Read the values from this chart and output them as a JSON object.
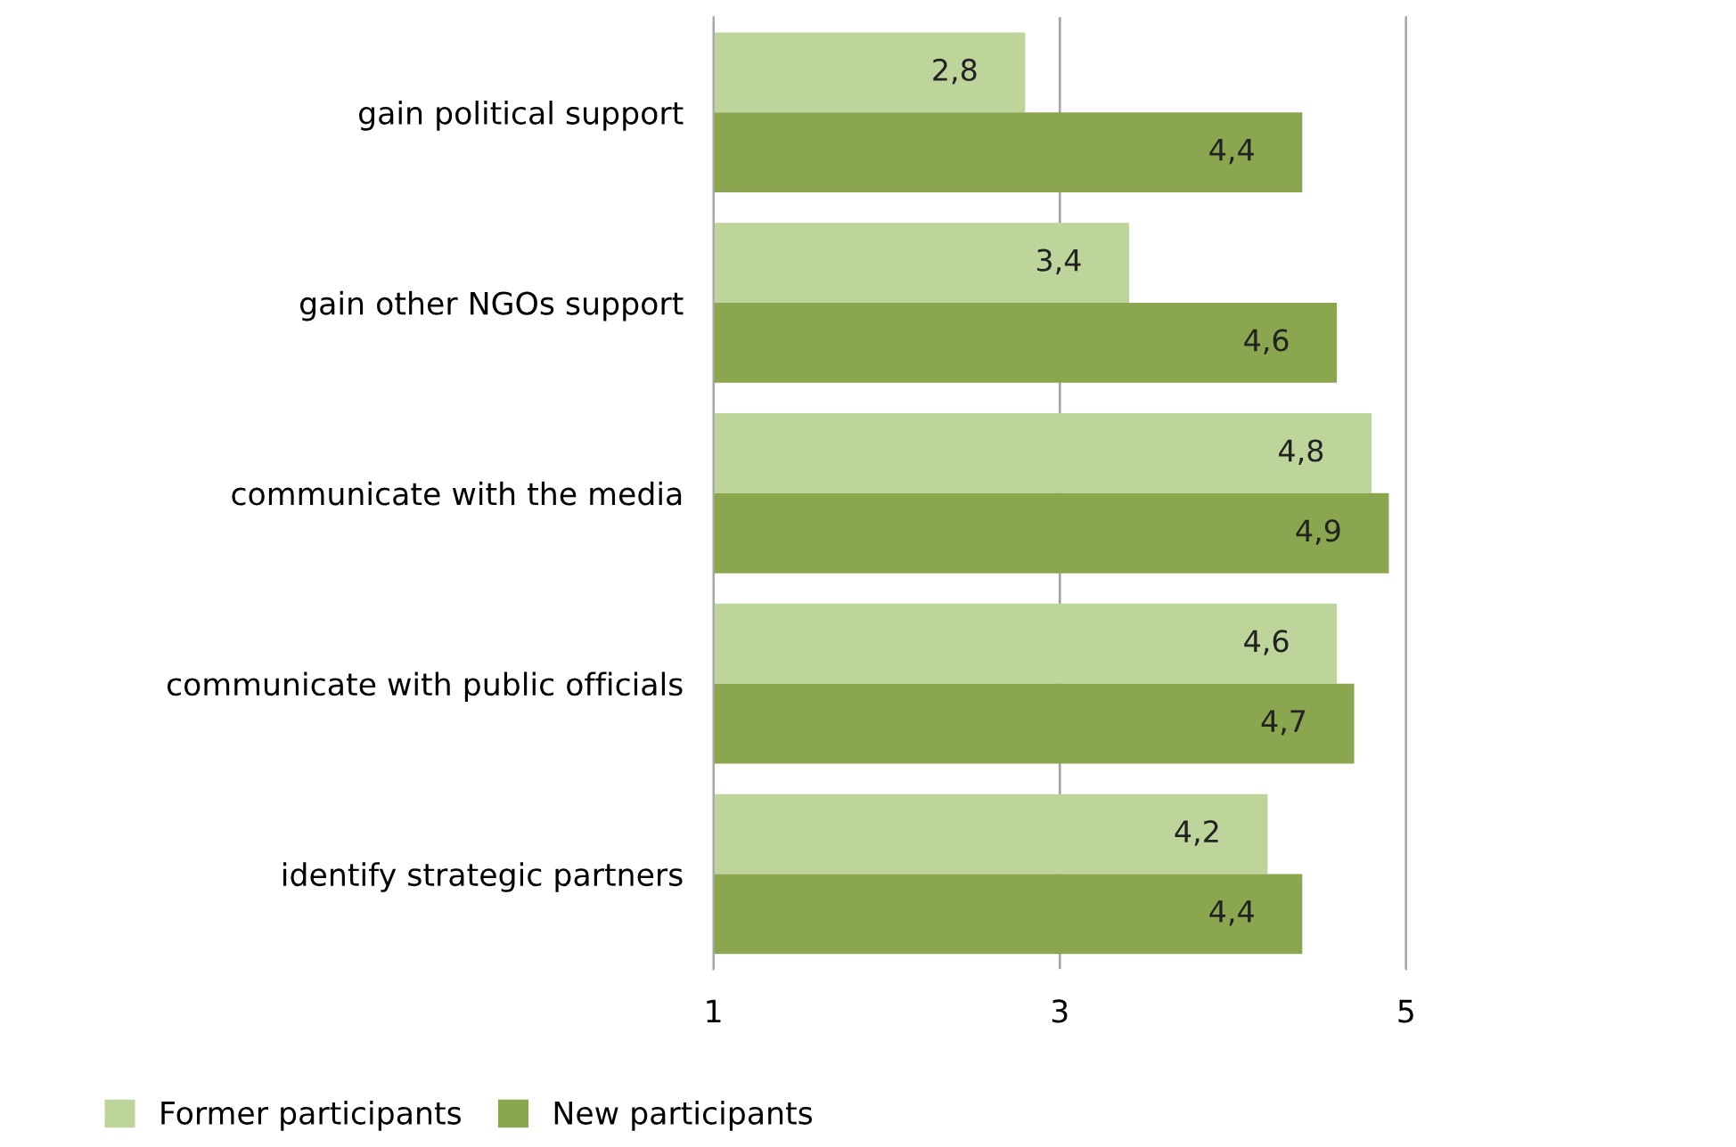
{
  "chart_data": {
    "type": "bar",
    "orientation": "horizontal",
    "categories": [
      "gain political support",
      "gain other NGOs support",
      "communicate with the media",
      "communicate with public officials",
      "identify strategic partners"
    ],
    "series": [
      {
        "name": "Former participants",
        "color": "#bdd49b",
        "values": [
          2.8,
          3.4,
          4.8,
          4.6,
          4.2
        ],
        "value_labels": [
          "2,8",
          "3,4",
          "4,8",
          "4,6",
          "4,2"
        ]
      },
      {
        "name": "New participants",
        "color": "#8aa64e",
        "values": [
          4.4,
          4.6,
          4.9,
          4.7,
          4.4
        ],
        "value_labels": [
          "4,4",
          "4,6",
          "4,9",
          "4,7",
          "4,4"
        ]
      }
    ],
    "xlim": [
      1,
      5
    ],
    "xticks": [
      1,
      3,
      5
    ],
    "grid": "x",
    "legend": "bottom left"
  }
}
